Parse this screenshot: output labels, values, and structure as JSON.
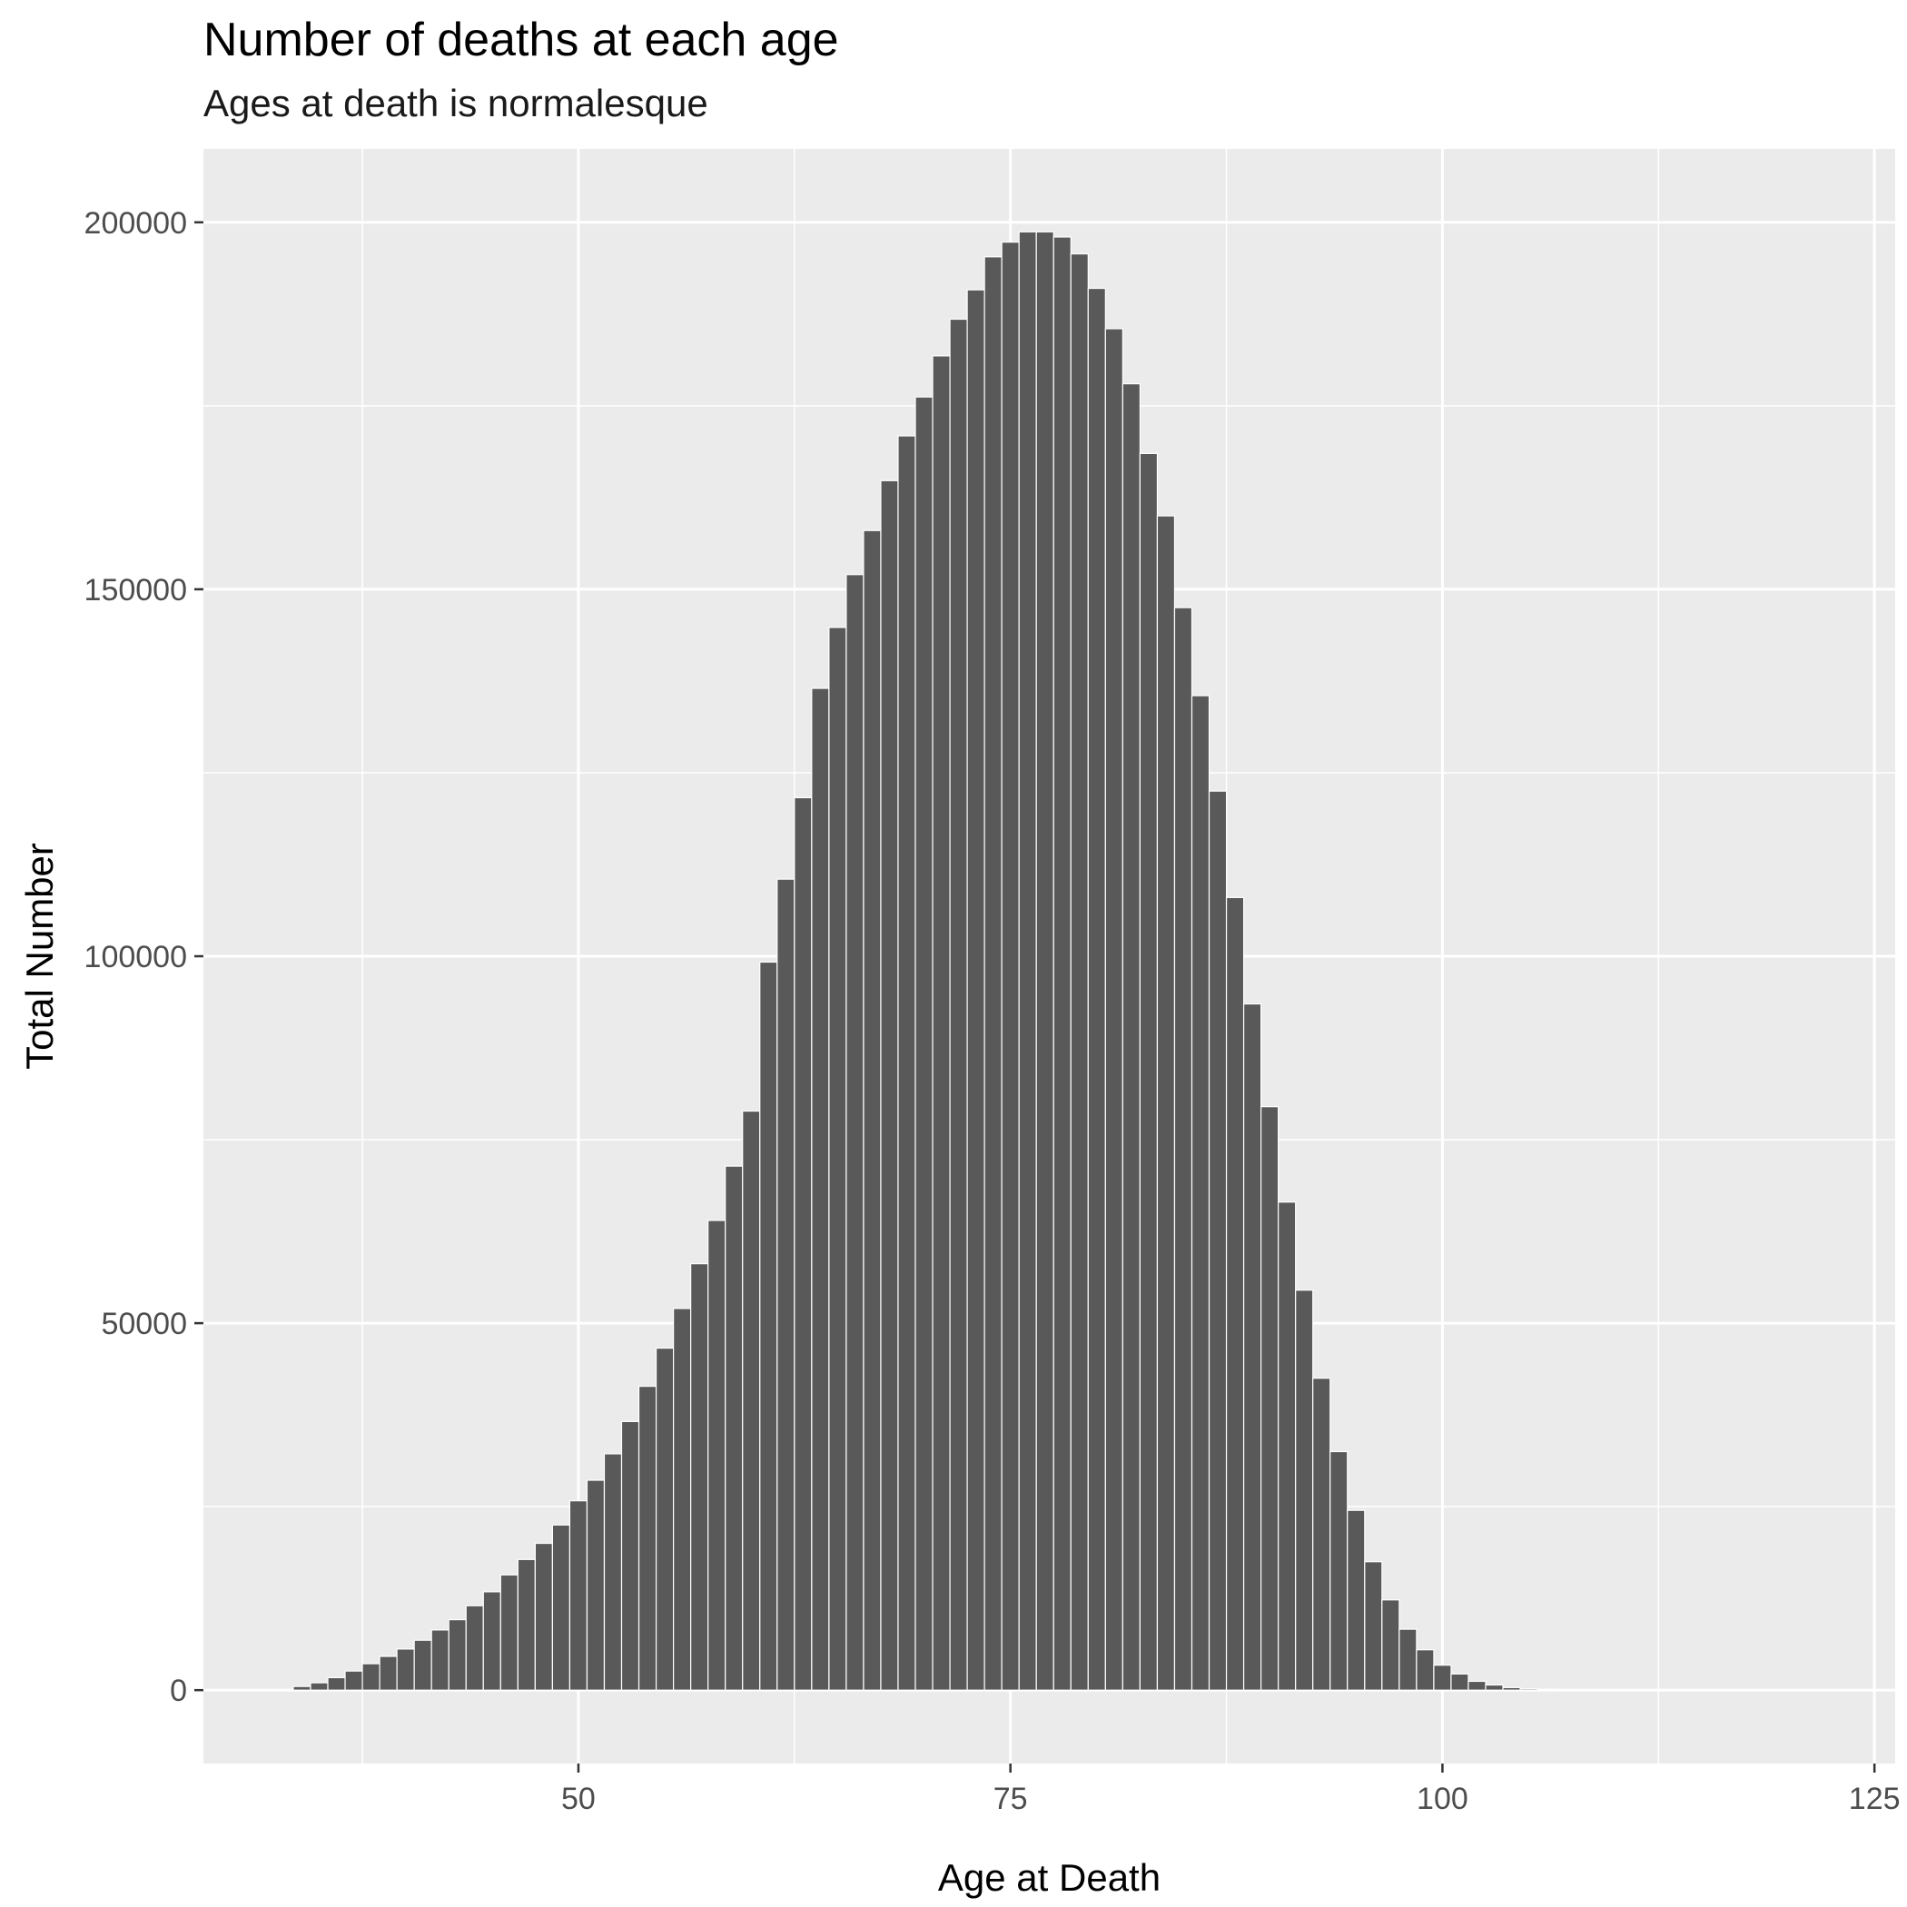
{
  "chart_data": {
    "type": "bar",
    "title": "Number of deaths at each age",
    "subtitle": "Ages at death is normalesque",
    "xlabel": "Age at Death",
    "ylabel": "Total Number",
    "xlim": [
      28.3,
      126.2
    ],
    "ylim": [
      -10000,
      210000
    ],
    "x_ticks": [
      50,
      75,
      100,
      125
    ],
    "x_tick_labels": [
      "50",
      "75",
      "100",
      "125"
    ],
    "x_minor_ticks": [
      37.5,
      62.5,
      87.5,
      112.5
    ],
    "y_ticks": [
      0,
      50000,
      100000,
      150000,
      200000
    ],
    "y_tick_labels": [
      "0",
      "50000",
      "100000",
      "150000",
      "200000"
    ],
    "y_minor_ticks": [
      25000,
      75000,
      125000,
      175000
    ],
    "grid": true,
    "bar_color": "#595959",
    "panel_color": "#ebebeb",
    "grid_color": "#ffffff",
    "x": [
      34,
      35,
      36,
      37,
      38,
      39,
      40,
      41,
      42,
      43,
      44,
      45,
      46,
      47,
      48,
      49,
      50,
      51,
      52,
      53,
      54,
      55,
      56,
      57,
      58,
      59,
      60,
      61,
      62,
      63,
      64,
      65,
      66,
      67,
      68,
      69,
      70,
      71,
      72,
      73,
      74,
      75,
      76,
      77,
      78,
      79,
      80,
      81,
      82,
      83,
      84,
      85,
      86,
      87,
      88,
      89,
      90,
      91,
      92,
      93,
      94,
      95,
      96,
      97,
      98,
      99,
      100,
      101,
      102,
      103,
      104,
      105,
      106,
      107,
      108,
      109,
      110
    ],
    "values": [
      500,
      1000,
      1700,
      2600,
      3600,
      4600,
      5600,
      6800,
      8200,
      9600,
      11500,
      13400,
      15700,
      17800,
      20000,
      22500,
      25800,
      28600,
      32200,
      36600,
      41400,
      46600,
      52000,
      58100,
      64000,
      71400,
      78900,
      99200,
      110500,
      121600,
      136500,
      144800,
      152000,
      158000,
      164800,
      170900,
      176200,
      181800,
      186800,
      190800,
      195300,
      197300,
      198700,
      198700,
      198000,
      195700,
      191000,
      185500,
      178000,
      168500,
      160000,
      147500,
      135500,
      122500,
      108000,
      93500,
      79500,
      66500,
      54500,
      42500,
      32500,
      24500,
      17500,
      12300,
      8300,
      5500,
      3400,
      2200,
      1200,
      700,
      350,
      180,
      100,
      60,
      40,
      25,
      15
    ]
  }
}
